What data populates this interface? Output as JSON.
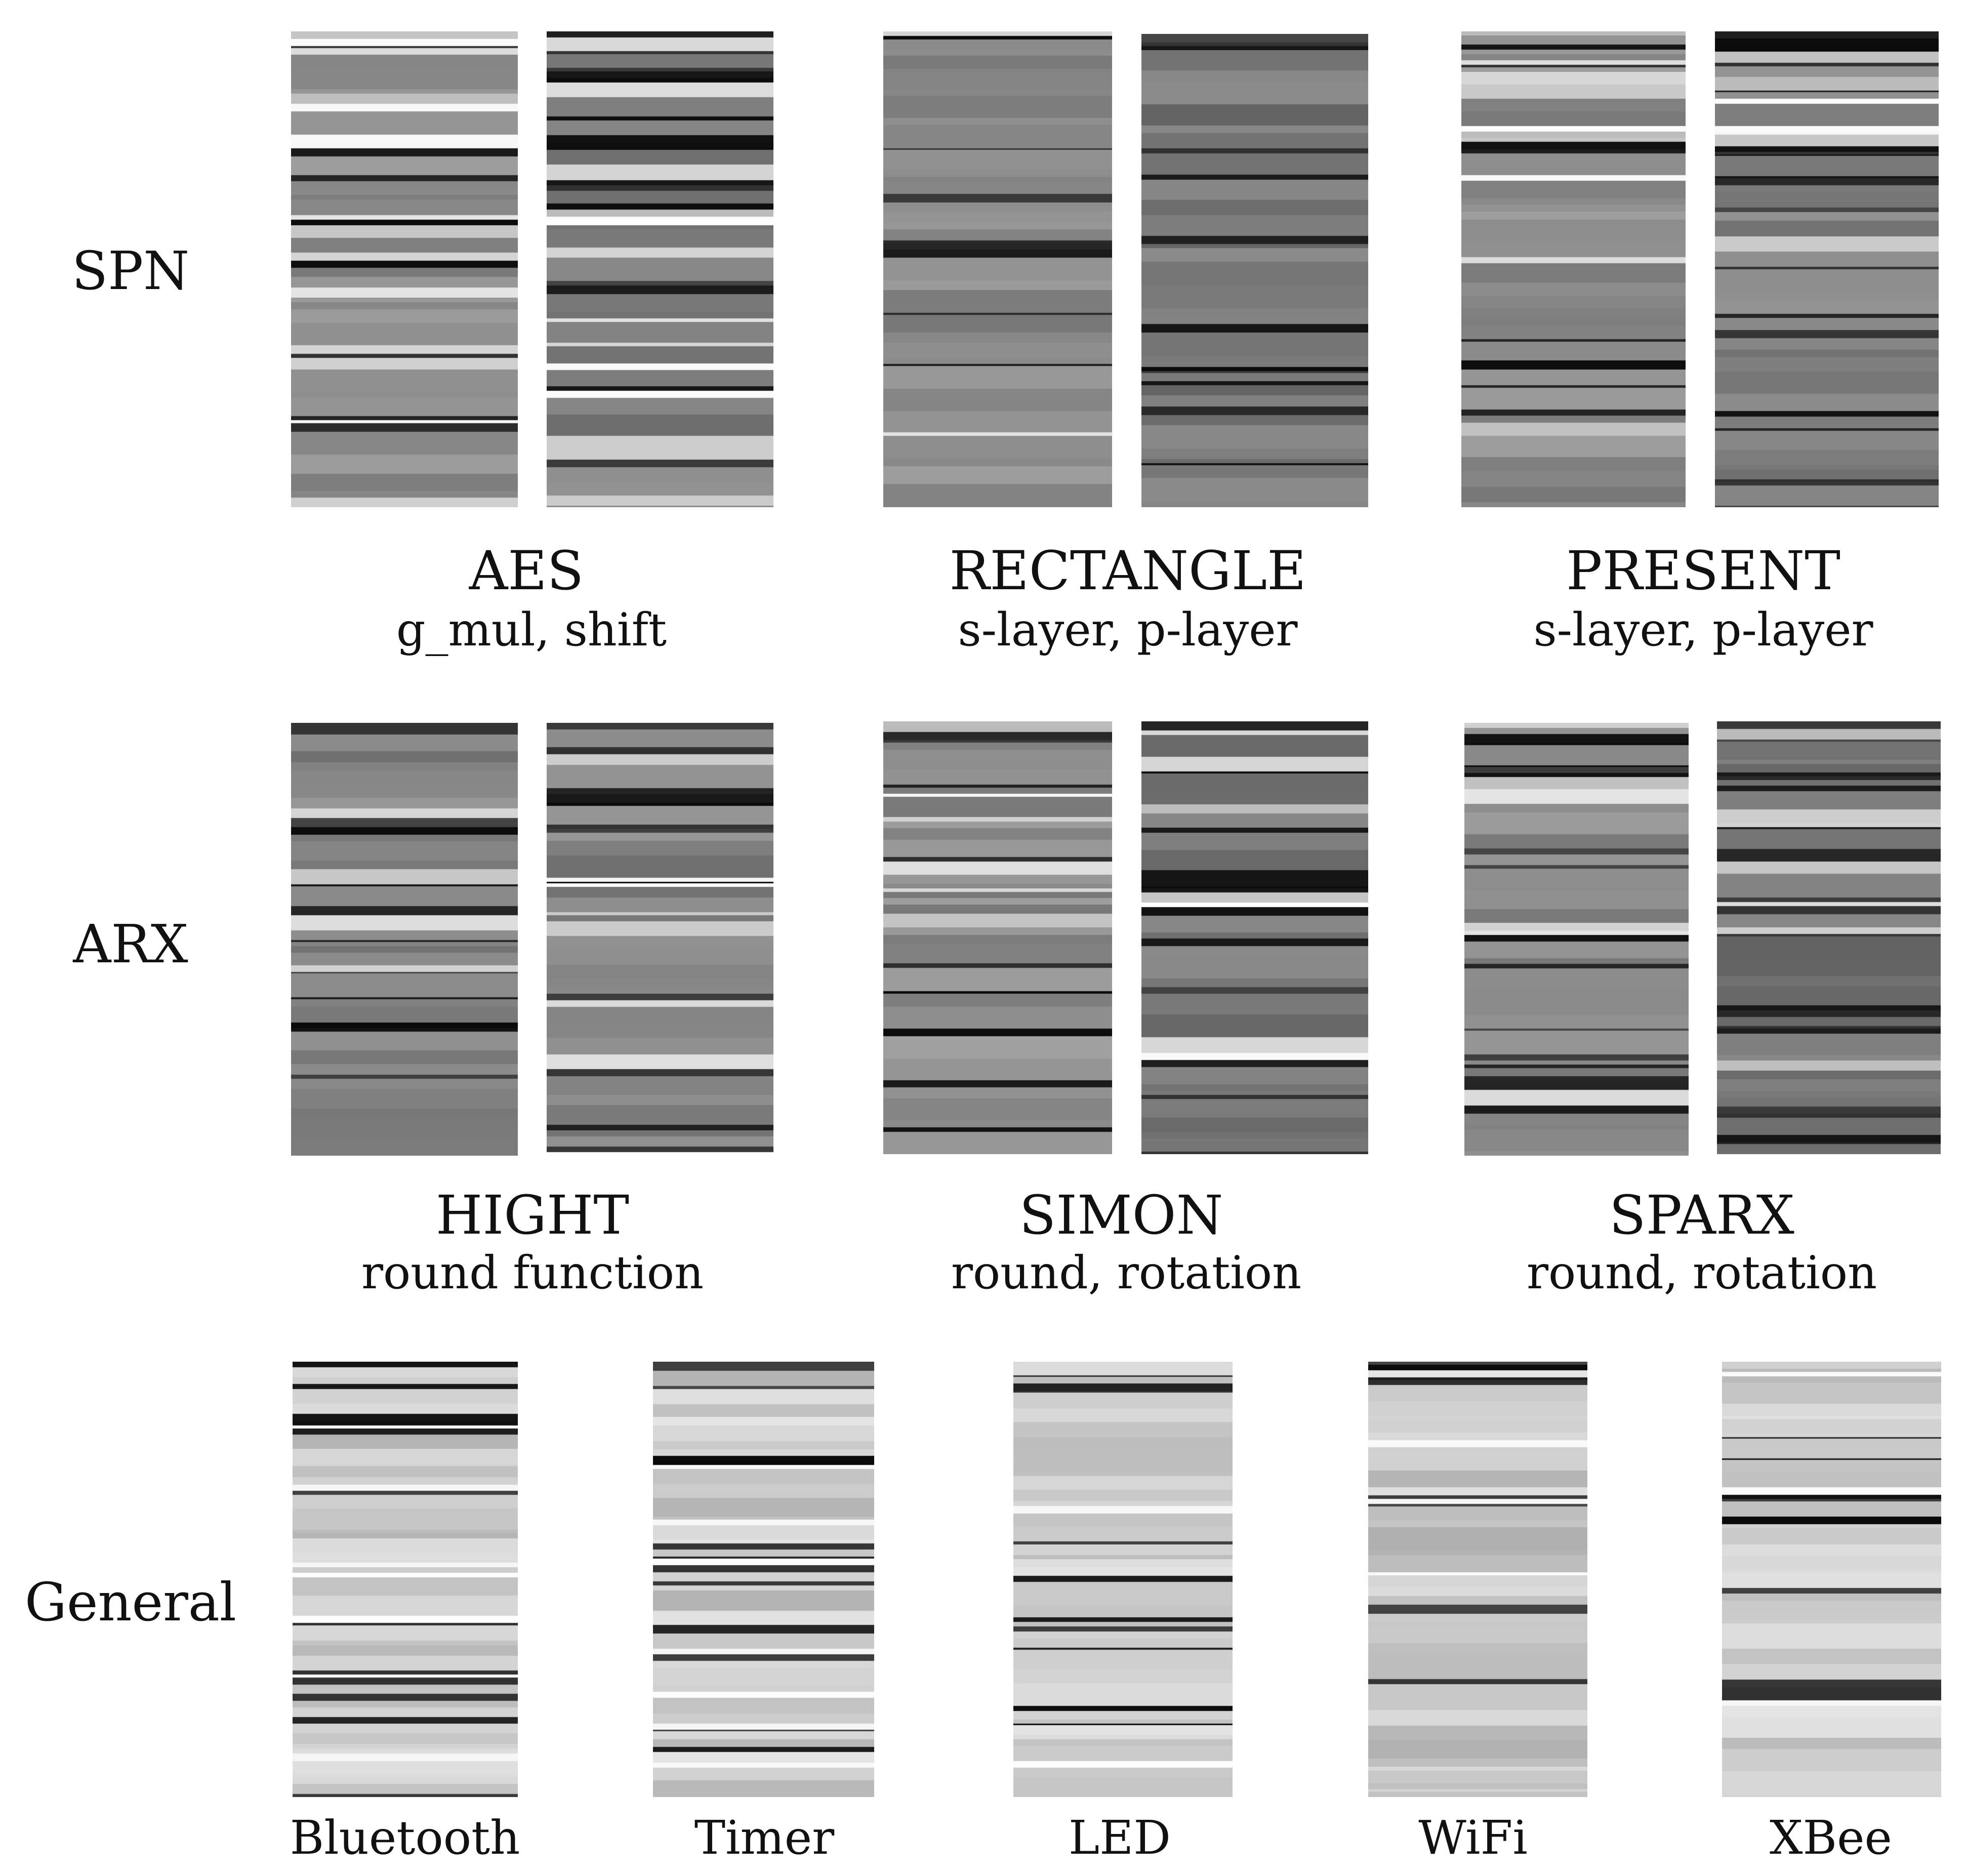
{
  "rows": [
    {
      "label": "SPN",
      "groups": [
        {
          "title": "AES",
          "subtitle": "g_mul, shift",
          "strips": [
            {
              "seed": 11,
              "base": 140,
              "dark": 0.1,
              "white": 0.08,
              "light": 0.16
            },
            {
              "seed": 23,
              "base": 130,
              "dark": 0.3,
              "white": 0.07,
              "light": 0.16
            }
          ]
        },
        {
          "title": "RECTANGLE",
          "subtitle": "s-layer, p-layer",
          "strips": [
            {
              "seed": 37,
              "base": 138,
              "dark": 0.22,
              "white": 0.0,
              "light": 0.06
            },
            {
              "seed": 41,
              "base": 120,
              "dark": 0.34,
              "white": 0.0,
              "light": 0.06
            }
          ]
        },
        {
          "title": "PRESENT",
          "subtitle": "s-layer, p-layer",
          "strips": [
            {
              "seed": 53,
              "base": 140,
              "dark": 0.14,
              "white": 0.07,
              "light": 0.14
            },
            {
              "seed": 67,
              "base": 130,
              "dark": 0.36,
              "white": 0.02,
              "light": 0.12
            }
          ]
        }
      ]
    },
    {
      "label": "ARX",
      "groups": [
        {
          "title": "HIGHT",
          "subtitle": "round function",
          "strips": [
            {
              "seed": 71,
              "base": 132,
              "dark": 0.26,
              "white": 0.05,
              "light": 0.1
            },
            {
              "seed": 83,
              "base": 132,
              "dark": 0.24,
              "white": 0.05,
              "light": 0.1
            }
          ]
        },
        {
          "title": "SIMON",
          "subtitle": "round, rotation",
          "strips": [
            {
              "seed": 97,
              "base": 140,
              "dark": 0.16,
              "white": 0.02,
              "light": 0.1
            },
            {
              "seed": 101,
              "base": 120,
              "dark": 0.34,
              "white": 0.03,
              "light": 0.06
            }
          ]
        },
        {
          "title": "SPARX",
          "subtitle": "round, rotation",
          "strips": [
            {
              "seed": 113,
              "base": 140,
              "dark": 0.24,
              "white": 0.0,
              "light": 0.06
            },
            {
              "seed": 127,
              "base": 118,
              "dark": 0.32,
              "white": 0.0,
              "light": 0.1
            }
          ]
        }
      ]
    }
  ],
  "general": {
    "label": "General",
    "strips": [
      {
        "title": "Bluetooth",
        "seed": 131,
        "base": 200,
        "dark": 0.3,
        "white": 0.1,
        "light": 0.4
      },
      {
        "title": "Timer",
        "seed": 139,
        "base": 200,
        "dark": 0.22,
        "white": 0.08,
        "light": 0.45
      },
      {
        "title": "LED",
        "seed": 149,
        "base": 205,
        "dark": 0.18,
        "white": 0.05,
        "light": 0.55
      },
      {
        "title": "WiFi",
        "seed": 151,
        "base": 190,
        "dark": 0.32,
        "white": 0.08,
        "light": 0.3
      },
      {
        "title": "XBee",
        "seed": 157,
        "base": 205,
        "dark": 0.18,
        "white": 0.04,
        "light": 0.55
      }
    ]
  }
}
